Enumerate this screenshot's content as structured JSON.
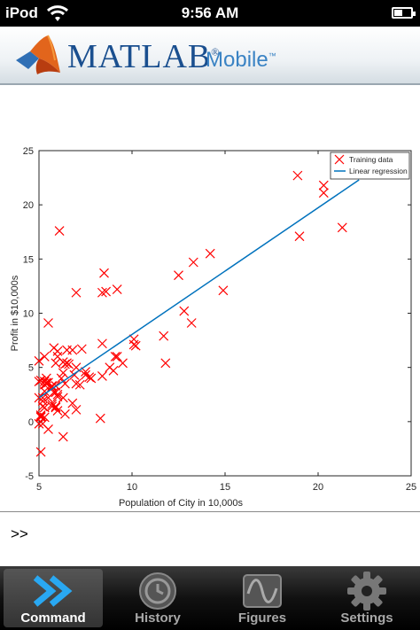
{
  "status_bar": {
    "carrier": "iPod",
    "time": "9:56 AM",
    "battery_level": 0.5
  },
  "app": {
    "name": "MATLAB",
    "sub": "Mobile",
    "trademark": "®",
    "sub_trademark": "™"
  },
  "command": {
    "prompt": ">>"
  },
  "tabs": [
    {
      "label": "Command",
      "icon": "double-chevron-icon",
      "active": true
    },
    {
      "label": "History",
      "icon": "clock-icon",
      "active": false
    },
    {
      "label": "Figures",
      "icon": "sine-wave-icon",
      "active": false
    },
    {
      "label": "Settings",
      "icon": "gear-icon",
      "active": false
    }
  ],
  "chart_data": {
    "type": "scatter",
    "xlabel": "Population of City in 10,000s",
    "ylabel": "Profit in $10,000s",
    "xlim": [
      5,
      25
    ],
    "ylim": [
      -5,
      25
    ],
    "xticks": [
      5,
      10,
      15,
      20,
      25
    ],
    "yticks": [
      -5,
      0,
      5,
      10,
      15,
      20,
      25
    ],
    "legend_position": "top-right",
    "series": [
      {
        "name": "Training data",
        "marker": "x",
        "color": "#ff0000",
        "points": [
          [
            6.1,
            17.6
          ],
          [
            5.5,
            9.1
          ],
          [
            8.5,
            13.7
          ],
          [
            7.0,
            11.9
          ],
          [
            5.8,
            6.8
          ],
          [
            8.4,
            11.9
          ],
          [
            7.5,
            4.3
          ],
          [
            8.6,
            12.0
          ],
          [
            6.5,
            6.6
          ],
          [
            5.1,
            3.8
          ],
          [
            5.7,
            3.3
          ],
          [
            14.2,
            15.5
          ],
          [
            5.7,
            3.2
          ],
          [
            8.4,
            7.2
          ],
          [
            6.4,
            0.7
          ],
          [
            5.4,
            3.5
          ],
          [
            6.4,
            5.3
          ],
          [
            5.1,
            0.6
          ],
          [
            5.0,
            3.7
          ],
          [
            6.5,
            5.4
          ],
          [
            6.0,
            6.5
          ],
          [
            5.9,
            5.4
          ],
          [
            9.2,
            6.0
          ],
          [
            8.8,
            5.0
          ],
          [
            6.8,
            1.7
          ],
          [
            5.3,
            3.4
          ],
          [
            21.3,
            17.9
          ],
          [
            14.9,
            12.1
          ],
          [
            20.3,
            21.8
          ],
          [
            5.4,
            4.0
          ],
          [
            6.3,
            5.5
          ],
          [
            7.8,
            4.0
          ],
          [
            6.6,
            5.3
          ],
          [
            5.7,
            1.4
          ],
          [
            7.5,
            4.6
          ],
          [
            9.0,
            4.7
          ],
          [
            7.0,
            5.0
          ],
          [
            5.3,
            6.0
          ],
          [
            5.3,
            3.7
          ],
          [
            5.1,
            0.4
          ],
          [
            10.1,
            7.6
          ],
          [
            12.8,
            10.2
          ],
          [
            8.3,
            0.3
          ],
          [
            6.3,
            -1.4
          ],
          [
            5.2,
            2.2
          ],
          [
            18.9,
            22.7
          ],
          [
            10.2,
            7.0
          ],
          [
            13.3,
            14.7
          ],
          [
            5.0,
            5.6
          ],
          [
            6.2,
            4.0
          ],
          [
            5.2,
            1.9
          ],
          [
            5.9,
            1.4
          ],
          [
            6.4,
            3.5
          ],
          [
            7.0,
            1.1
          ],
          [
            6.9,
            4.3
          ],
          [
            5.1,
            -2.8
          ],
          [
            5.9,
            2.7
          ],
          [
            5.4,
            3.6
          ],
          [
            5.9,
            1.3
          ],
          [
            6.3,
            2.2
          ],
          [
            5.1,
            0.5
          ],
          [
            5.3,
            2.8
          ],
          [
            7.3,
            6.7
          ],
          [
            5.5,
            3.6
          ],
          [
            20.3,
            21.1
          ],
          [
            10.1,
            7.1
          ],
          [
            7.2,
            3.4
          ],
          [
            5.0,
            2.2
          ],
          [
            11.7,
            7.9
          ],
          [
            5.5,
            -0.7
          ],
          [
            13.2,
            9.1
          ],
          [
            6.8,
            6.6
          ],
          [
            5.7,
            1.6
          ],
          [
            11.8,
            5.4
          ],
          [
            6.0,
            2.5
          ],
          [
            5.2,
            -0.2
          ],
          [
            5.8,
            2.7
          ],
          [
            5.9,
            3.3
          ],
          [
            6.0,
            1.0
          ],
          [
            9.1,
            6.0
          ],
          [
            5.3,
            0.4
          ],
          [
            7.0,
            3.5
          ],
          [
            19.0,
            17.1
          ],
          [
            12.5,
            13.5
          ],
          [
            5.5,
            2.2
          ],
          [
            6.0,
            6.0
          ],
          [
            9.5,
            5.4
          ],
          [
            8.4,
            4.2
          ],
          [
            5.2,
            1.4
          ],
          [
            5.0,
            -0.2
          ],
          [
            6.0,
            2.3
          ],
          [
            5.3,
            1.3
          ],
          [
            7.7,
            4.1
          ],
          [
            6.3,
            4.5
          ],
          [
            9.2,
            12.2
          ]
        ]
      },
      {
        "name": "Linear regression",
        "type": "line",
        "color": "#0072bd",
        "x": [
          5.0,
          22.2
        ],
        "y": [
          2.2,
          22.3
        ]
      }
    ]
  }
}
